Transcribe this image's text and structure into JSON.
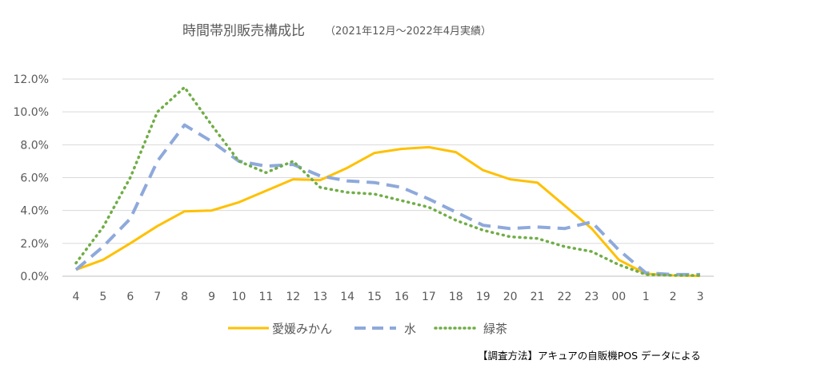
{
  "chart_data": {
    "type": "line",
    "title": "時間帯別販売構成比",
    "subtitle": "（2021年12月～2022年4月実績）",
    "categories": [
      "4",
      "5",
      "6",
      "7",
      "8",
      "9",
      "10",
      "11",
      "12",
      "13",
      "14",
      "15",
      "16",
      "17",
      "18",
      "19",
      "20",
      "21",
      "22",
      "23",
      "00",
      "1",
      "2",
      "3"
    ],
    "y_ticks": [
      "0.0%",
      "2.0%",
      "4.0%",
      "6.0%",
      "8.0%",
      "10.0%",
      "12.0%"
    ],
    "ylim": [
      0,
      12
    ],
    "grid": true,
    "legend_position": "bottom",
    "series": [
      {
        "name": "愛媛みかん",
        "color": "#FFC000",
        "dash": "solid",
        "values": [
          0.4,
          1.0,
          2.0,
          3.05,
          3.95,
          4.0,
          4.5,
          5.2,
          5.9,
          5.85,
          6.6,
          7.5,
          7.75,
          7.85,
          7.55,
          6.45,
          5.9,
          5.7,
          4.3,
          2.9,
          1.0,
          0.15,
          0.05,
          0.02
        ]
      },
      {
        "name": "水",
        "color": "#8EA9DB",
        "dash": "dash",
        "values": [
          0.4,
          1.8,
          3.5,
          7.0,
          9.2,
          8.2,
          7.0,
          6.7,
          6.8,
          6.1,
          5.8,
          5.7,
          5.4,
          4.7,
          3.9,
          3.1,
          2.9,
          3.0,
          2.9,
          3.3,
          1.6,
          0.2,
          0.1,
          0.1
        ]
      },
      {
        "name": "緑茶",
        "color": "#70AD47",
        "dash": "dot",
        "values": [
          0.8,
          3.0,
          6.0,
          10.0,
          11.5,
          9.2,
          7.0,
          6.3,
          7.0,
          5.4,
          5.1,
          5.0,
          4.6,
          4.2,
          3.4,
          2.8,
          2.4,
          2.3,
          1.8,
          1.5,
          0.7,
          0.1,
          0.05,
          0.05
        ]
      }
    ],
    "source_note": "【調査方法】アキュアの自販機POS データによる"
  }
}
